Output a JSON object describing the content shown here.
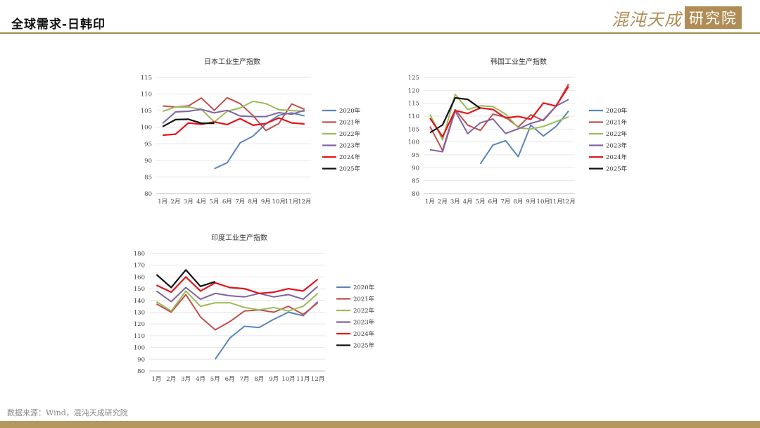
{
  "header": {
    "title": "全球需求-日韩印",
    "brand_main": "混沌天成",
    "brand_box": "研究院"
  },
  "source": "数据来源：Wind，混沌天成研究院",
  "colors": {
    "2020年": "#5b86b8",
    "2021年": "#c0504d",
    "2022年": "#9bbb59",
    "2023年": "#8064a2",
    "2024年": "#e2161d",
    "2025年": "#111111"
  },
  "chart_data": [
    {
      "type": "line",
      "title": "日本工业生产指数",
      "categories": [
        "1月",
        "2月",
        "3月",
        "4月",
        "5月",
        "6月",
        "7月",
        "8月",
        "9月",
        "10月",
        "11月",
        "12月"
      ],
      "ylim": [
        80,
        115
      ],
      "yticks": [
        80,
        85,
        90,
        95,
        100,
        105,
        110,
        115
      ],
      "legend": "right",
      "series": [
        {
          "name": "2020年",
          "values": [
            null,
            null,
            null,
            null,
            87.5,
            89.3,
            95.3,
            97.3,
            101,
            103.6,
            104.3,
            103.4
          ]
        },
        {
          "name": "2021年",
          "values": [
            106.4,
            106.1,
            106.4,
            108.8,
            105.1,
            108.9,
            107.1,
            103.5,
            99,
            101.1,
            107,
            105.4
          ]
        },
        {
          "name": "2022年",
          "values": [
            104.8,
            106.1,
            106.1,
            105.4,
            101.6,
            104.8,
            105.8,
            107.8,
            107.1,
            105.3,
            105,
            104.8
          ]
        },
        {
          "name": "2023年",
          "values": [
            101.2,
            104.6,
            104.8,
            105.4,
            104.3,
            105.1,
            103.4,
            103.2,
            103.2,
            104.4,
            103.9,
            105.1
          ]
        },
        {
          "name": "2024年",
          "values": [
            97.6,
            97.9,
            101.3,
            100.9,
            101.6,
            100.8,
            102.6,
            100.6,
            101.1,
            102.8,
            101.3,
            101
          ]
        },
        {
          "name": "2025年",
          "values": [
            100.2,
            102.3,
            102.4,
            101.2,
            101.2,
            null,
            null,
            null,
            null,
            null,
            null,
            null
          ]
        }
      ]
    },
    {
      "type": "line",
      "title": "韩国工业生产指数",
      "categories": [
        "1月",
        "2月",
        "3月",
        "4月",
        "5月",
        "6月",
        "7月",
        "8月",
        "9月",
        "10月",
        "11月",
        "12月"
      ],
      "ylim": [
        80,
        125
      ],
      "yticks": [
        80,
        85,
        90,
        95,
        100,
        105,
        110,
        115,
        120,
        125
      ],
      "legend": "right",
      "series": [
        {
          "name": "2020年",
          "values": [
            null,
            null,
            null,
            null,
            91.5,
            98.8,
            100.5,
            94.3,
            106.5,
            102.3,
            106,
            112
          ]
        },
        {
          "name": "2021年",
          "values": [
            106,
            96.7,
            112.5,
            106.5,
            104.5,
            110.8,
            109.6,
            105.8,
            110.5,
            108.3,
            113.8,
            122.5
          ]
        },
        {
          "name": "2022年",
          "values": [
            110.7,
            100.8,
            118.4,
            112.6,
            114,
            113.7,
            110.8,
            105.5,
            105,
            106,
            107.9,
            109.7
          ]
        },
        {
          "name": "2023年",
          "values": [
            97,
            96.2,
            112,
            103.2,
            107.4,
            108.9,
            103.3,
            105.1,
            107.2,
            108.6,
            113.9,
            116.5
          ]
        },
        {
          "name": "2024年",
          "values": [
            109.2,
            102,
            112.2,
            111,
            113.2,
            112.6,
            109.3,
            109.9,
            108.8,
            115.1,
            113.9,
            121.5
          ]
        },
        {
          "name": "2025年",
          "values": [
            103.6,
            106.6,
            117.1,
            116.5,
            113,
            null,
            null,
            null,
            null,
            null,
            null,
            null
          ]
        }
      ]
    },
    {
      "type": "line",
      "title": "印度工业生产指数",
      "categories": [
        "1月",
        "2月",
        "3月",
        "4月",
        "5月",
        "6月",
        "7月",
        "8月",
        "9月",
        "10月",
        "11月",
        "12月"
      ],
      "ylim": [
        80,
        180
      ],
      "yticks": [
        80,
        90,
        100,
        110,
        120,
        130,
        140,
        150,
        160,
        170,
        180
      ],
      "legend": "right",
      "series": [
        {
          "name": "2020年",
          "values": [
            null,
            null,
            null,
            null,
            90,
            108,
            118,
            117,
            124,
            130,
            127,
            139
          ]
        },
        {
          "name": "2021年",
          "values": [
            137,
            130,
            145,
            126,
            115,
            122,
            131,
            132,
            130,
            135,
            128,
            138
          ]
        },
        {
          "name": "2022年",
          "values": [
            139,
            131,
            148,
            135,
            138,
            138,
            134,
            132,
            134,
            131,
            135,
            146
          ]
        },
        {
          "name": "2023年",
          "values": [
            148,
            139,
            151,
            141,
            146,
            144,
            143,
            146,
            143,
            145,
            141,
            152
          ]
        },
        {
          "name": "2024年",
          "values": [
            153,
            147,
            160,
            148,
            155,
            151,
            150,
            146,
            147,
            150,
            148,
            158
          ]
        },
        {
          "name": "2025年",
          "values": [
            162,
            151,
            166,
            152,
            156,
            null,
            null,
            null,
            null,
            null,
            null,
            null
          ]
        }
      ]
    }
  ]
}
